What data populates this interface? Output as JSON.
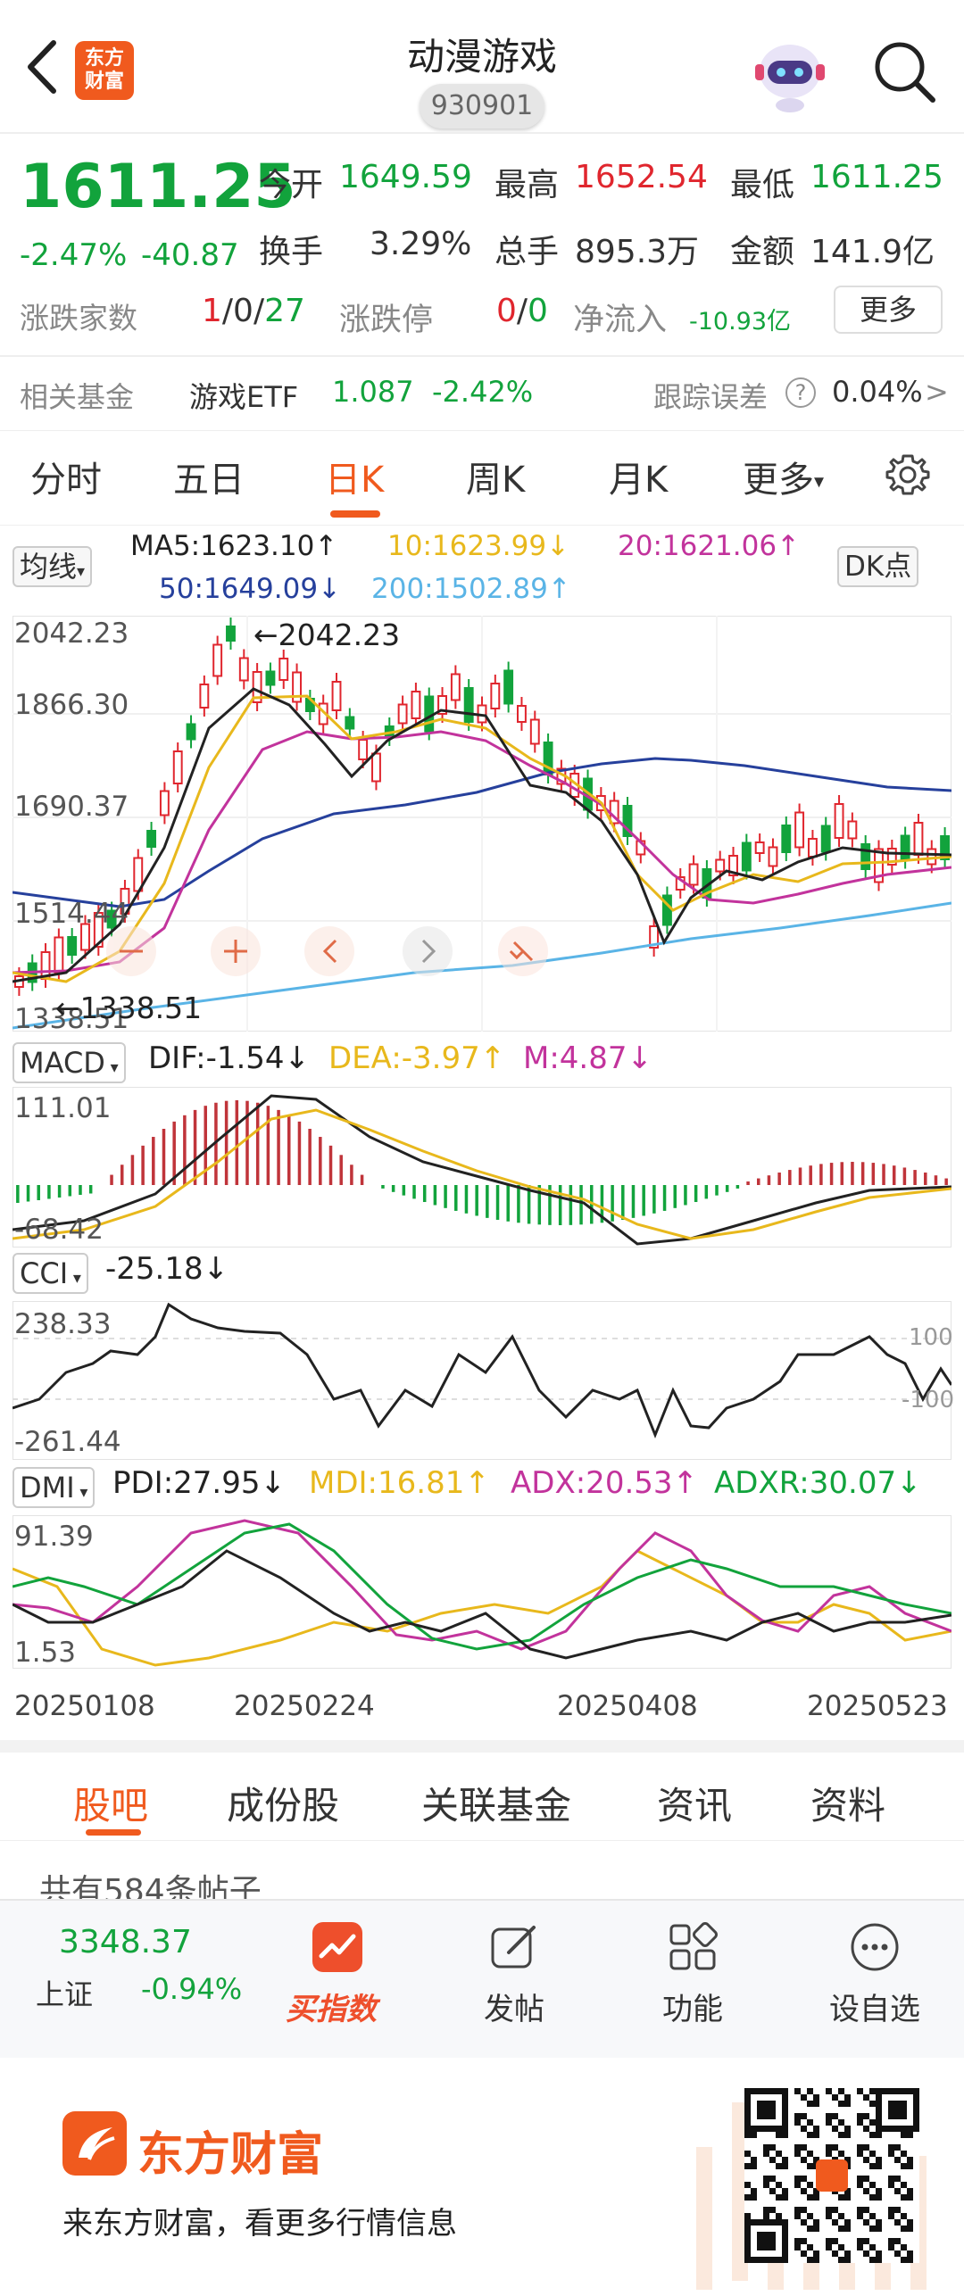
{
  "header": {
    "logo_line1": "东方",
    "logo_line2": "财富",
    "title": "动漫游戏",
    "code": "930901"
  },
  "quote": {
    "price": "1611.25",
    "change_pct": "-2.47%",
    "change": "-40.87",
    "open_label": "今开",
    "open": "1649.59",
    "high_label": "最高",
    "high": "1652.54",
    "low_label": "最低",
    "low": "1611.25",
    "turnover_label": "换手",
    "turnover": "3.29%",
    "volume_label": "总手",
    "volume": "895.3万",
    "amount_label": "金额",
    "amount": "141.9亿",
    "updown_label": "涨跌家数",
    "up": "1",
    "slash1": "/",
    "flat": "0",
    "slash2": "/",
    "down": "27",
    "limit_label": "涨跌停",
    "limit_up": "0",
    "slash3": "/",
    "limit_down": "0",
    "netflow_label": "净流入",
    "netflow": "-10.93亿",
    "more": "更多"
  },
  "fund": {
    "label": "相关基金",
    "name": "游戏ETF",
    "price": "1.087",
    "pct": "-2.42%",
    "track_label": "跟踪误差",
    "help": "?",
    "track_value": "0.04%",
    "arrow": ">"
  },
  "period_tabs": [
    "分时",
    "五日",
    "日K",
    "周K",
    "月K",
    "更多"
  ],
  "chart": {
    "ma_selector": "均线",
    "ma5": "MA5:1623.10↑",
    "ma10": "10:1623.99↓",
    "ma20": "20:1621.06↑",
    "ma50": "50:1649.09↓",
    "ma200": "200:1502.89↑",
    "dk_button": "DK点",
    "price_labels": [
      "2042.23",
      "1866.30",
      "1690.37",
      "1514.44",
      "1338.51"
    ],
    "high_marker": "←2042.23",
    "low_marker": "←1338.51",
    "macd_selector": "MACD",
    "macd_dif": "DIF:-1.54↓",
    "macd_dea": "DEA:-3.97↑",
    "macd_m": "M:4.87↓",
    "macd_top": "111.01",
    "macd_bottom": "-68.42",
    "cci_selector": "CCI",
    "cci_value": "-25.18↓",
    "cci_top": "238.33",
    "cci_bottom": "-261.44",
    "cci_100": "100",
    "cci_neg100": "-100",
    "dmi_selector": "DMI",
    "dmi_pdi": "PDI:27.95↓",
    "dmi_mdi": "MDI:16.81↑",
    "dmi_adx": "ADX:20.53↑",
    "dmi_adxr": "ADXR:30.07↓",
    "dmi_top": "91.39",
    "dmi_bottom": "1.53",
    "dates": [
      "20250108",
      "20250224",
      "20250408",
      "20250523"
    ]
  },
  "sub_tabs": [
    "股吧",
    "成份股",
    "关联基金",
    "资讯",
    "资料"
  ],
  "posts_count": "共有584条帖子",
  "bottom_bar": {
    "index_value": "3348.37",
    "index_name": "上证",
    "index_pct": "-0.94%",
    "buy_index": "买指数",
    "post": "发帖",
    "function": "功能",
    "watchlist": "设自选"
  },
  "footer": {
    "brand": "东方财富",
    "slogan": "来东方财富，看更多行情信息"
  },
  "colors": {
    "up": "#e0262e",
    "down": "#12a33c",
    "accent": "#f05a1e",
    "ma5": "#222222",
    "ma10": "#e8b81c",
    "ma20": "#c2339c",
    "ma50": "#26409c",
    "ma200": "#5ab4e6"
  }
}
